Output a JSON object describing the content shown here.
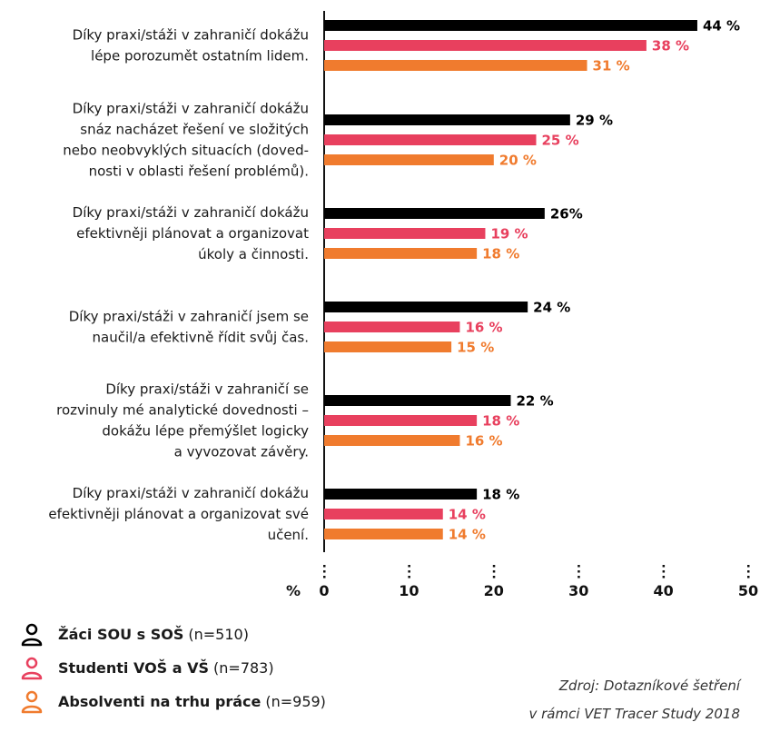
{
  "chart_data": {
    "type": "bar",
    "orientation": "horizontal",
    "categories": [
      [
        "Díky praxi/stáži v zahraničí dokážu",
        "lépe porozumět ostatním lidem."
      ],
      [
        "Díky praxi/stáži v zahraničí dokážu",
        "snáz nacházet řešení ve složitých",
        "nebo neobvyklých situacích (doved-",
        "nosti v oblasti řešení problémů)."
      ],
      [
        "Díky praxi/stáži v zahraničí dokážu",
        "efektivněji plánovat a organizovat",
        "úkoly a činnosti."
      ],
      [
        "Díky praxi/stáži v zahraničí jsem se",
        "naučil/a efektivně řídit svůj čas."
      ],
      [
        "Díky praxi/stáži v zahraničí se",
        "rozvinuly mé analytické dovednosti –",
        "dokážu lépe přemýšlet logicky",
        "a vyvozovat závěry."
      ],
      [
        "Díky praxi/stáži v zahraničí dokážu",
        "efektivněji plánovat a organizovat své",
        "učení."
      ]
    ],
    "series": [
      {
        "name": "Žáci SOU s SOŠ",
        "n_label": "(n=510)",
        "color": "#000000",
        "values": [
          44,
          29,
          26,
          24,
          22,
          18
        ],
        "value_labels": [
          "44 %",
          "29 %",
          "26%",
          "24 %",
          "22 %",
          "18 %"
        ]
      },
      {
        "name": "Studenti VOŠ a VŠ",
        "n_label": "(n=783)",
        "color": "#e8405e",
        "values": [
          38,
          25,
          19,
          16,
          18,
          14
        ],
        "value_labels": [
          "38 %",
          "25 %",
          "19 %",
          "16 %",
          "18 %",
          "14 %"
        ]
      },
      {
        "name": "Absolventi na trhu práce",
        "n_label": "(n=959)",
        "color": "#f07b2e",
        "values": [
          31,
          20,
          18,
          15,
          16,
          14
        ],
        "value_labels": [
          "31 %",
          "20 %",
          "18 %",
          "15 %",
          "16 %",
          "14 %"
        ]
      }
    ],
    "xlim": [
      0,
      50
    ],
    "xticks": [
      0,
      10,
      20,
      30,
      40,
      50
    ],
    "xlabel": "%",
    "legend_position": "bottom-left",
    "grid": false
  },
  "source": {
    "line1": "Zdroj: Dotazníkové šetření",
    "line2": "v rámci VET Tracer Study 2018"
  }
}
